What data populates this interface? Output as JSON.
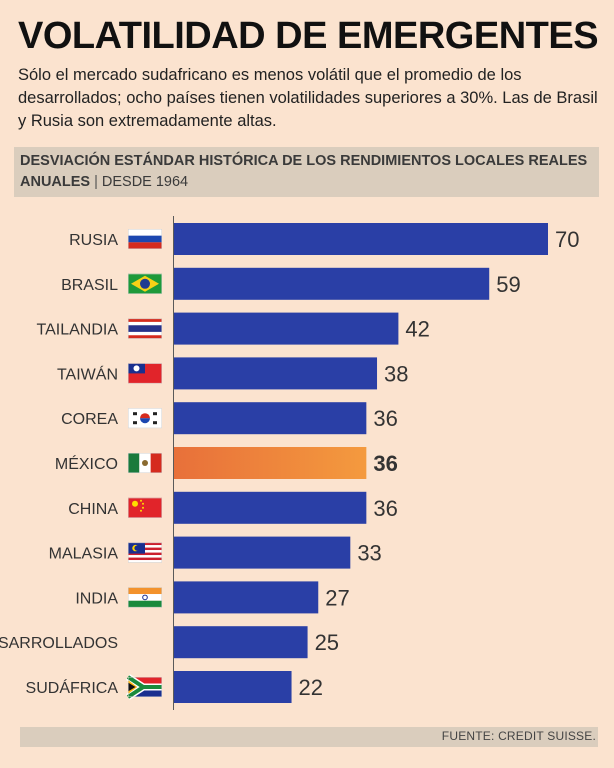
{
  "title": "VOLATILIDAD DE EMERGENTES",
  "subtitle": "Sólo el mercado sudafricano es menos volátil que el promedio de los desarrollados; ocho países tienen volatilidades superiores a 30%. Las de Brasil y Rusia son extremadamente altas.",
  "header": {
    "main": "DESVIACIÓN ESTÁNDAR HISTÓRICA DE LOS RENDIMIENTOS LOCALES REALES ANUALES",
    "separator": "|",
    "since": "DESDE 1964"
  },
  "source": "FUENTE: CREDIT SUISSE.",
  "colors": {
    "bar": "#2a3fa6",
    "highlight_start": "#e8703a",
    "highlight_end": "#f49a3e",
    "label": "#333333",
    "value": "#333333"
  },
  "chart_data": {
    "type": "bar",
    "orientation": "horizontal",
    "title": "DESVIACIÓN ESTÁNDAR HISTÓRICA DE LOS RENDIMIENTOS LOCALES REALES ANUALES | DESDE 1964",
    "categories": [
      "RUSIA",
      "BRASIL",
      "TAILANDIA",
      "TAIWÁN",
      "COREA",
      "MÉXICO",
      "CHINA",
      "MALASIA",
      "INDIA",
      "DESARROLLADOS",
      "SUDÁFRICA"
    ],
    "values": [
      70,
      59,
      42,
      38,
      36,
      36,
      36,
      33,
      27,
      25,
      22
    ],
    "flags": [
      "russia-flag",
      "brazil-flag",
      "thailand-flag",
      "taiwan-flag",
      "korea-flag",
      "mexico-flag",
      "china-flag",
      "malaysia-flag",
      "india-flag",
      "",
      "south-africa-flag"
    ],
    "highlight": "MÉXICO",
    "xlim": [
      0,
      70
    ],
    "grid": false
  }
}
